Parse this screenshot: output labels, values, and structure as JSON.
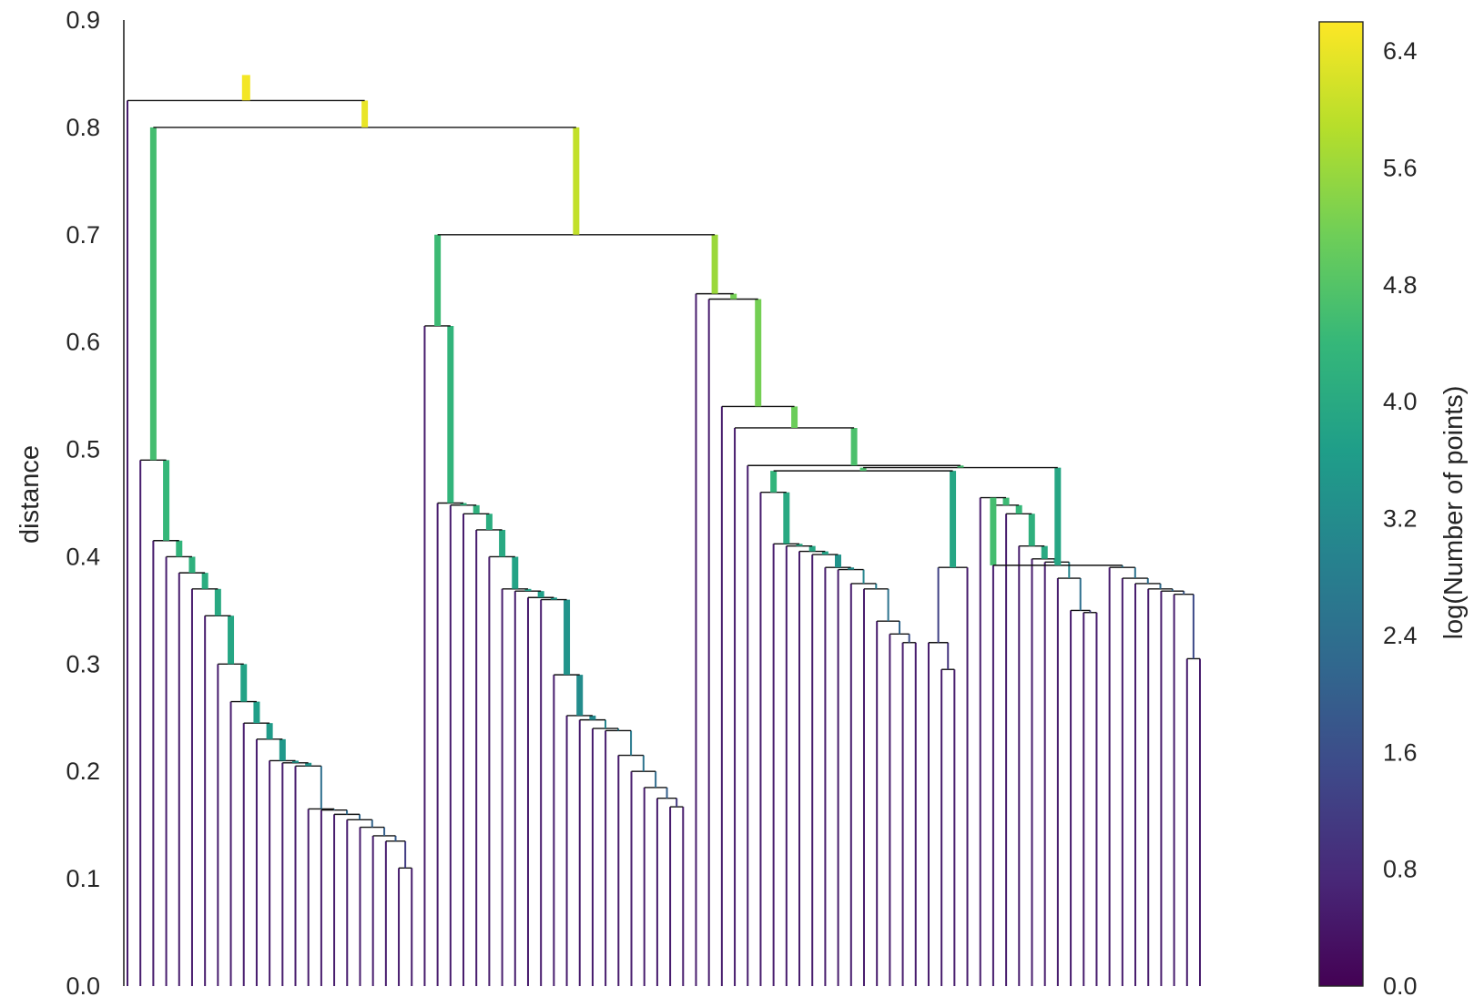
{
  "chart_data": {
    "type": "dendrogram",
    "title": "",
    "ylabel": "distance",
    "ylim": [
      0,
      0.9
    ],
    "y_ticks": [
      "0.0",
      "0.1",
      "0.2",
      "0.3",
      "0.4",
      "0.5",
      "0.6",
      "0.7",
      "0.8",
      "0.9"
    ],
    "y_tick_values": [
      0,
      0.1,
      0.2,
      0.3,
      0.4,
      0.5,
      0.6,
      0.7,
      0.8,
      0.9
    ],
    "grid": false,
    "colorbar": {
      "label": "log(Number of points)",
      "range": [
        0,
        6.6
      ],
      "ticks": [
        "0.0",
        "0.8",
        "1.6",
        "2.4",
        "3.2",
        "4.0",
        "4.8",
        "5.6",
        "6.4"
      ],
      "tick_values": [
        0,
        0.8,
        1.6,
        2.4,
        3.2,
        4.0,
        4.8,
        5.6,
        6.4
      ],
      "colormap": "viridis",
      "colors": [
        "#440154",
        "#482878",
        "#3e4989",
        "#31688e",
        "#26828e",
        "#1f9e89",
        "#35b779",
        "#6ece58",
        "#b5de2b",
        "#fde725"
      ]
    },
    "leaf_count": 100,
    "root_split_distance": 0.825,
    "merges": [
      {
        "distance": 0.825,
        "log_points": 6.5
      },
      {
        "distance": 0.8,
        "log_points": 6.4
      },
      {
        "distance": 0.7,
        "log_points": 6.0
      },
      {
        "distance": 0.645,
        "log_points": 5.6
      },
      {
        "distance": 0.64,
        "log_points": 5.2
      },
      {
        "distance": 0.615,
        "log_points": 4.6
      },
      {
        "distance": 0.54,
        "log_points": 5.2
      },
      {
        "distance": 0.52,
        "log_points": 5.1
      },
      {
        "distance": 0.49,
        "log_points": 4.6
      },
      {
        "distance": 0.485,
        "log_points": 4.7
      },
      {
        "distance": 0.48,
        "log_points": 4.6
      },
      {
        "distance": 0.46,
        "log_points": 4.3
      },
      {
        "distance": 0.455,
        "log_points": 4.5
      },
      {
        "distance": 0.45,
        "log_points": 4.3
      },
      {
        "distance": 0.42,
        "log_points": 4.1
      },
      {
        "distance": 0.4,
        "log_points": 4.4
      },
      {
        "distance": 0.39,
        "log_points": 3.6
      },
      {
        "distance": 0.37,
        "log_points": 3.9
      },
      {
        "distance": 0.36,
        "log_points": 3.6
      },
      {
        "distance": 0.345,
        "log_points": 4.2
      },
      {
        "distance": 0.32,
        "log_points": 2.6
      },
      {
        "distance": 0.3,
        "log_points": 4.0
      },
      {
        "distance": 0.29,
        "log_points": 3.7
      },
      {
        "distance": 0.25,
        "log_points": 3.6
      },
      {
        "distance": 0.21,
        "log_points": 3.5
      },
      {
        "distance": 0.2,
        "log_points": 2.7
      },
      {
        "distance": 0.165,
        "log_points": 2.0
      },
      {
        "distance": 0.135,
        "log_points": 2.2
      },
      {
        "distance": 0.11,
        "log_points": 1.2
      }
    ]
  }
}
